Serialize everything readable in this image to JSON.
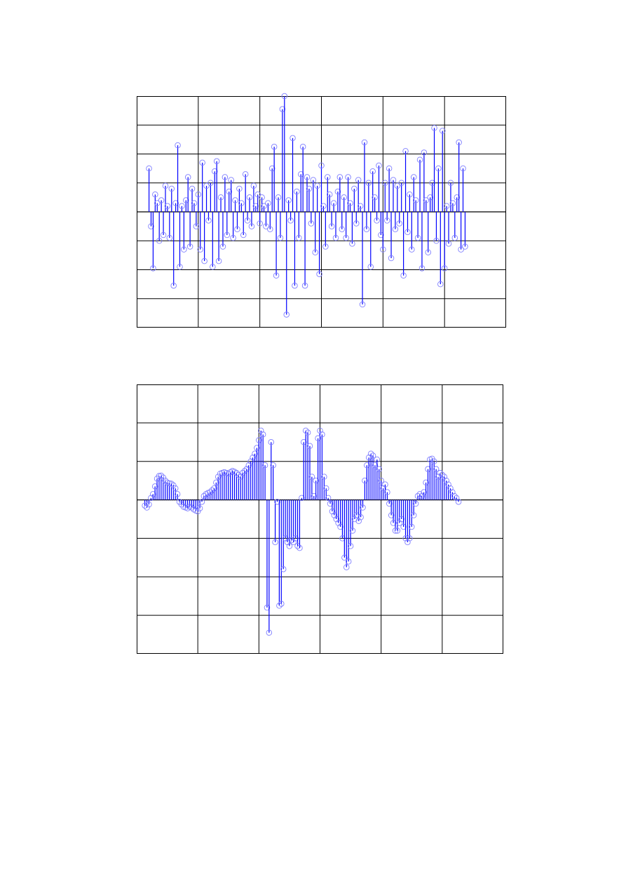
{
  "chart_data": [
    {
      "type": "stem",
      "title": "",
      "xlabel": "",
      "ylabel": "",
      "xlim": [
        0,
        180
      ],
      "ylim": [
        -4,
        4
      ],
      "grid": true,
      "x_gridlines": 6,
      "y_gridlines": 8,
      "colors": {
        "stem": "#0000ff",
        "marker": "#8080ff",
        "axes": "#000000"
      },
      "marker": "circle-open",
      "x": [
        6,
        7,
        8,
        9,
        10,
        11,
        12,
        13,
        14,
        15,
        16,
        17,
        18,
        19,
        20,
        21,
        22,
        23,
        24,
        25,
        26,
        27,
        28,
        29,
        30,
        31,
        32,
        33,
        34,
        35,
        36,
        37,
        38,
        39,
        40,
        41,
        42,
        43,
        44,
        45,
        46,
        47,
        48,
        49,
        50,
        51,
        52,
        53,
        54,
        55,
        56,
        57,
        58,
        59,
        60,
        61,
        62,
        63,
        64,
        65,
        66,
        67,
        68,
        69,
        70,
        71,
        72,
        73,
        74,
        75,
        76,
        77,
        78,
        79,
        80,
        81,
        82,
        83,
        84,
        85,
        86,
        87,
        88,
        89,
        90,
        91,
        92,
        93,
        94,
        95,
        96,
        97,
        98,
        99,
        100,
        101,
        102,
        103,
        104,
        105,
        106,
        107,
        108,
        109,
        110,
        111,
        112,
        113,
        114,
        115,
        116,
        117,
        118,
        119,
        120,
        121,
        122,
        123,
        124,
        125,
        126,
        127,
        128,
        129,
        130,
        131,
        132,
        133,
        134,
        135,
        136,
        137,
        138,
        139,
        140,
        141,
        142,
        143,
        144,
        145,
        146,
        147,
        148,
        149,
        150,
        151,
        152,
        153,
        154,
        155,
        156,
        157,
        158,
        159,
        160
      ],
      "values": [
        1.5,
        -0.5,
        -1.95,
        0.6,
        0.3,
        -1.0,
        0.4,
        -0.8,
        0.9,
        0.2,
        -0.9,
        0.8,
        -2.55,
        0.3,
        2.3,
        -1.9,
        0.2,
        -1.3,
        0.4,
        1.2,
        -1.2,
        0.8,
        0.3,
        -0.5,
        0.6,
        -1.3,
        1.7,
        -1.7,
        0.9,
        -0.3,
        1.0,
        -1.9,
        1.4,
        1.75,
        -1.7,
        0.5,
        -1.2,
        1.2,
        -0.8,
        0.7,
        1.1,
        -0.9,
        0.4,
        -0.6,
        0.8,
        0.3,
        -0.8,
        1.3,
        -0.3,
        0.5,
        -0.5,
        0.9,
        0.2,
        0.6,
        -0.4,
        0.5,
        0.2,
        -0.5,
        0.3,
        -0.6,
        1.5,
        2.25,
        -2.2,
        0.5,
        -0.9,
        3.55,
        4.0,
        -3.55,
        0.4,
        -0.3,
        2.55,
        -2.55,
        0.7,
        -0.9,
        1.3,
        2.25,
        -2.55,
        1.2,
        0.8,
        -0.4,
        1.1,
        -1.4,
        0.9,
        -2.15,
        1.6,
        0.2,
        -1.2,
        1.2,
        0.6,
        -0.5,
        0.3,
        -0.9,
        0.7,
        1.2,
        -0.6,
        0.5,
        -0.9,
        1.2,
        0.3,
        -1.1,
        0.8,
        -0.4,
        1.1,
        0.2,
        -3.2,
        2.4,
        -0.6,
        1.0,
        -1.9,
        1.4,
        0.5,
        -0.3,
        1.6,
        -0.8,
        -1.3,
        1.0,
        -0.3,
        1.5,
        -1.6,
        1.1,
        -0.6,
        0.9,
        -0.4,
        1.0,
        -2.2,
        2.1,
        -0.7,
        0.6,
        -1.3,
        1.2,
        0.4,
        -0.9,
        1.8,
        -1.95,
        2.05,
        0.4,
        -1.4,
        0.5,
        1.0,
        2.9,
        -1.0,
        1.5,
        -2.5,
        2.8,
        -1.95,
        0.2,
        -1.1,
        1.0,
        0.3,
        -0.9,
        0.5,
        2.4,
        -1.3,
        1.5,
        -1.2
      ]
    },
    {
      "type": "stem",
      "title": "",
      "xlabel": "",
      "ylabel": "",
      "xlim": [
        0,
        180
      ],
      "ylim": [
        -4,
        3
      ],
      "grid": true,
      "x_gridlines": 6,
      "y_gridlines": 7,
      "colors": {
        "stem": "#0000ff",
        "marker": "#8080ff",
        "axes": "#000000"
      },
      "marker": "circle-open",
      "x": [
        4,
        5,
        6,
        7,
        8,
        9,
        10,
        11,
        12,
        13,
        14,
        15,
        16,
        17,
        18,
        19,
        20,
        21,
        22,
        23,
        24,
        25,
        26,
        27,
        28,
        29,
        30,
        31,
        32,
        33,
        34,
        35,
        36,
        37,
        38,
        39,
        40,
        41,
        42,
        43,
        44,
        45,
        46,
        47,
        48,
        49,
        50,
        51,
        52,
        53,
        54,
        55,
        56,
        57,
        58,
        59,
        60,
        61,
        62,
        63,
        64,
        65,
        66,
        67,
        68,
        69,
        70,
        71,
        72,
        73,
        74,
        75,
        76,
        77,
        78,
        79,
        80,
        81,
        82,
        83,
        84,
        85,
        86,
        87,
        88,
        89,
        90,
        91,
        92,
        93,
        94,
        95,
        96,
        97,
        98,
        99,
        100,
        101,
        102,
        103,
        104,
        105,
        106,
        107,
        108,
        109,
        110,
        111,
        112,
        113,
        114,
        115,
        116,
        117,
        118,
        119,
        120,
        121,
        122,
        123,
        124,
        125,
        126,
        127,
        128,
        129,
        130,
        131,
        132,
        133,
        134,
        135,
        136,
        137,
        138,
        139,
        140,
        141,
        142,
        143,
        144,
        145,
        146,
        147,
        148,
        149,
        150,
        151,
        152,
        153,
        154,
        155,
        156,
        157,
        158
      ],
      "values": [
        -0.15,
        -0.2,
        -0.12,
        0.05,
        0.15,
        0.35,
        0.55,
        0.62,
        0.63,
        0.58,
        0.5,
        0.45,
        0.43,
        0.42,
        0.38,
        0.3,
        0.15,
        -0.05,
        -0.12,
        -0.18,
        -0.2,
        -0.22,
        -0.18,
        -0.2,
        -0.25,
        -0.28,
        -0.3,
        -0.22,
        -0.05,
        0.1,
        0.15,
        0.18,
        0.2,
        0.25,
        0.3,
        0.45,
        0.6,
        0.68,
        0.7,
        0.72,
        0.7,
        0.68,
        0.72,
        0.75,
        0.73,
        0.7,
        0.65,
        0.6,
        0.7,
        0.75,
        0.8,
        0.9,
        1.0,
        1.1,
        1.2,
        1.35,
        1.55,
        1.8,
        1.7,
        0.9,
        -2.8,
        -3.45,
        1.5,
        0.9,
        -1.1,
        -0.05,
        -2.75,
        -2.7,
        -1.8,
        -1.0,
        -1.1,
        -1.2,
        -1.05,
        -1.1,
        -1.0,
        -1.2,
        -1.25,
        0.05,
        1.5,
        1.8,
        1.75,
        1.4,
        0.6,
        0.1,
        0.5,
        1.6,
        1.8,
        1.7,
        0.6,
        0.3,
        0.05,
        -0.1,
        -0.3,
        -0.4,
        -0.5,
        -0.6,
        -0.7,
        -1.0,
        -1.5,
        -1.75,
        -1.6,
        -1.2,
        -0.8,
        -0.5,
        -0.4,
        -0.55,
        -0.45,
        -0.2,
        0.5,
        0.9,
        1.1,
        1.2,
        1.15,
        0.9,
        1.05,
        0.8,
        0.5,
        0.3,
        0.4,
        0.2,
        -0.1,
        -0.4,
        -0.6,
        -0.8,
        -0.8,
        -0.6,
        -0.5,
        -0.7,
        -1.0,
        -1.1,
        -1.0,
        -0.7,
        -0.4,
        -0.1,
        0.1,
        0.15,
        0.1,
        0.2,
        0.45,
        0.8,
        1.05,
        1.07,
        1.0,
        0.8,
        0.6,
        0.7,
        0.65,
        0.6,
        0.5,
        0.4,
        0.3,
        0.2,
        0.1,
        0.05,
        -0.05
      ]
    }
  ]
}
